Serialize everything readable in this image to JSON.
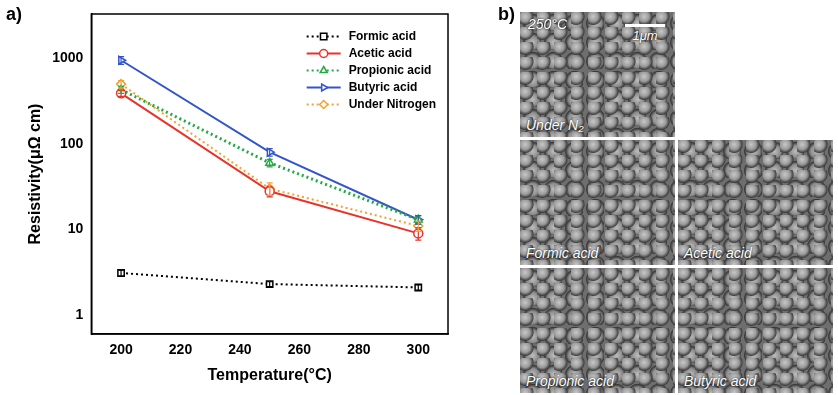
{
  "panel_labels": [
    "a)",
    "b)"
  ],
  "chart_data": {
    "type": "line",
    "x_label": "Temperature(°C)",
    "y_label": "Resistivity(μΩ cm)",
    "x": [
      200,
      250,
      300
    ],
    "xlim": [
      190,
      310
    ],
    "xticks": [
      200,
      220,
      240,
      260,
      280,
      300
    ],
    "ylim": [
      0.6,
      3300
    ],
    "yticks": [
      1,
      10,
      100,
      1000
    ],
    "log": "y",
    "grid": false,
    "legend": "top-right",
    "series": [
      {
        "name": "Formic acid",
        "color": "#000000",
        "marker": "square",
        "line_style": "dotted",
        "values": [
          3.1,
          2.3,
          2.1
        ],
        "errors": [
          0.25,
          0.15,
          0.15
        ]
      },
      {
        "name": "Acetic acid",
        "color": "#e8322a",
        "marker": "circle",
        "line_style": "solid",
        "values": [
          390,
          28,
          9
        ],
        "errors": [
          30,
          4,
          1.5
        ]
      },
      {
        "name": "Propionic acid",
        "color": "#22aa44",
        "marker": "triangle-up",
        "line_style": "dotted",
        "values": [
          430,
          60,
          13
        ],
        "errors": [
          40,
          6,
          1.5
        ]
      },
      {
        "name": "Butyric acid",
        "color": "#3355cc",
        "marker": "triangle-right",
        "line_style": "solid",
        "values": [
          950,
          80,
          13
        ],
        "errors": [
          100,
          8,
          1.5
        ]
      },
      {
        "name": "Under Nitrogen",
        "color": "#f5a030",
        "marker": "diamond",
        "line_style": "dotted",
        "values": [
          500,
          30,
          11
        ],
        "errors": [
          50,
          5,
          1.5
        ]
      }
    ]
  },
  "micrographs": {
    "temperature_label": "250°C",
    "scale_bar": "1μm",
    "panels": [
      "Under N₂",
      "Formic acid",
      "Acetic acid",
      "Propionic acid",
      "Butyric acid"
    ]
  }
}
